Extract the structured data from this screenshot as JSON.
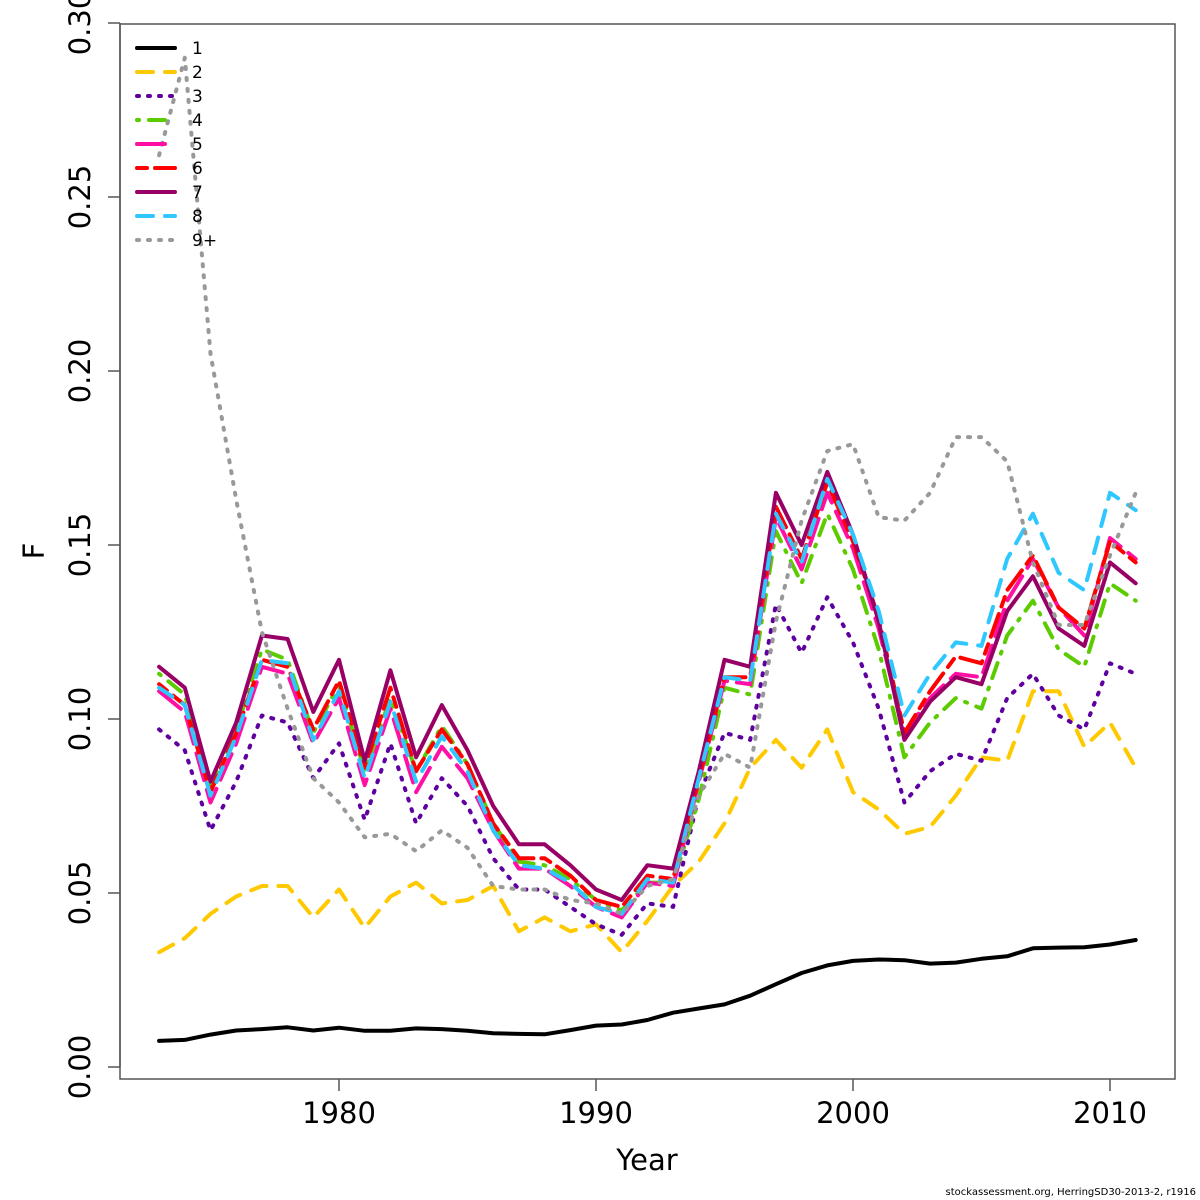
{
  "chart_data": {
    "type": "line",
    "title": "",
    "xlabel": "Year",
    "ylabel": "F",
    "xlim": [
      1972.4,
      2012.5
    ],
    "ylim": [
      0.0,
      0.3
    ],
    "xticks": [
      1980,
      1990,
      2000,
      2010
    ],
    "xtick_labels": [
      "1980",
      "1990",
      "2000",
      "2010"
    ],
    "yticks": [
      0.0,
      0.05,
      0.1,
      0.15,
      0.2,
      0.25,
      0.3
    ],
    "ytick_labels": [
      "0.00",
      "0.05",
      "0.10",
      "0.15",
      "0.20",
      "0.25",
      "0.30"
    ],
    "grid": false,
    "legend_position": "top-left",
    "x": [
      1973,
      1974,
      1975,
      1976,
      1977,
      1978,
      1979,
      1980,
      1981,
      1982,
      1983,
      1984,
      1985,
      1986,
      1987,
      1988,
      1989,
      1990,
      1991,
      1992,
      1993,
      1994,
      1995,
      1996,
      1997,
      1998,
      1999,
      2000,
      2001,
      2002,
      2003,
      2004,
      2005,
      2006,
      2007,
      2008,
      2009,
      2010,
      2011
    ],
    "series": [
      {
        "name": "1",
        "color": "#000000",
        "dash": "solid",
        "values": [
          0.0075,
          0.0078,
          0.0093,
          0.0105,
          0.0109,
          0.0114,
          0.0105,
          0.0113,
          0.0104,
          0.0104,
          0.0111,
          0.0109,
          0.0104,
          0.0097,
          0.0095,
          0.0094,
          0.0106,
          0.0119,
          0.0122,
          0.0135,
          0.0156,
          0.0168,
          0.018,
          0.0205,
          0.0238,
          0.027,
          0.0292,
          0.0305,
          0.0309,
          0.0307,
          0.0297,
          0.03,
          0.0311,
          0.0318,
          0.0341,
          0.0343,
          0.0344,
          0.0352,
          0.0365
        ]
      },
      {
        "name": "2",
        "color": "#FFC900",
        "dash": "dashed",
        "values": [
          0.033,
          0.037,
          0.044,
          0.049,
          0.052,
          0.052,
          0.043,
          0.051,
          0.04,
          0.049,
          0.053,
          0.047,
          0.048,
          0.052,
          0.039,
          0.043,
          0.039,
          0.041,
          0.033,
          0.042,
          0.052,
          0.059,
          0.07,
          0.086,
          0.094,
          0.086,
          0.097,
          0.079,
          0.074,
          0.067,
          0.069,
          0.078,
          0.089,
          0.088,
          0.108,
          0.108,
          0.092,
          0.099,
          0.086
        ]
      },
      {
        "name": "3",
        "color": "#5E00A0",
        "dash": "dotted",
        "values": [
          0.097,
          0.091,
          0.068,
          0.082,
          0.101,
          0.099,
          0.083,
          0.093,
          0.071,
          0.093,
          0.07,
          0.083,
          0.075,
          0.06,
          0.051,
          0.051,
          0.046,
          0.041,
          0.038,
          0.047,
          0.046,
          0.078,
          0.096,
          0.094,
          0.133,
          0.119,
          0.135,
          0.122,
          0.103,
          0.076,
          0.085,
          0.09,
          0.088,
          0.106,
          0.113,
          0.101,
          0.097,
          0.116,
          0.113
        ]
      },
      {
        "name": "4",
        "color": "#5CCC00",
        "dash": "dotdash",
        "values": [
          0.113,
          0.107,
          0.081,
          0.097,
          0.12,
          0.117,
          0.096,
          0.11,
          0.085,
          0.106,
          0.085,
          0.098,
          0.087,
          0.07,
          0.059,
          0.058,
          0.054,
          0.048,
          0.045,
          0.053,
          0.053,
          0.077,
          0.109,
          0.107,
          0.154,
          0.139,
          0.159,
          0.143,
          0.12,
          0.089,
          0.099,
          0.106,
          0.103,
          0.124,
          0.134,
          0.12,
          0.115,
          0.139,
          0.134
        ]
      },
      {
        "name": "5",
        "color": "#FF0FA3",
        "dash": "longdash",
        "values": [
          0.108,
          0.102,
          0.076,
          0.093,
          0.115,
          0.113,
          0.093,
          0.106,
          0.081,
          0.103,
          0.079,
          0.092,
          0.083,
          0.068,
          0.057,
          0.057,
          0.052,
          0.046,
          0.043,
          0.053,
          0.052,
          0.082,
          0.111,
          0.11,
          0.158,
          0.143,
          0.165,
          0.149,
          0.126,
          0.096,
          0.106,
          0.113,
          0.112,
          0.134,
          0.146,
          0.132,
          0.124,
          0.152,
          0.146
        ]
      },
      {
        "name": "6",
        "color": "#FF0000",
        "dash": "twodash",
        "values": [
          0.11,
          0.104,
          0.079,
          0.096,
          0.117,
          0.115,
          0.097,
          0.111,
          0.086,
          0.109,
          0.085,
          0.097,
          0.087,
          0.07,
          0.06,
          0.06,
          0.055,
          0.048,
          0.046,
          0.055,
          0.054,
          0.083,
          0.112,
          0.112,
          0.161,
          0.146,
          0.168,
          0.151,
          0.129,
          0.096,
          0.108,
          0.118,
          0.116,
          0.137,
          0.147,
          0.132,
          0.126,
          0.151,
          0.145
        ]
      },
      {
        "name": "7",
        "color": "#990066",
        "dash": "solid",
        "values": [
          0.115,
          0.109,
          0.082,
          0.099,
          0.124,
          0.123,
          0.102,
          0.117,
          0.088,
          0.114,
          0.089,
          0.104,
          0.091,
          0.075,
          0.064,
          0.064,
          0.058,
          0.051,
          0.048,
          0.058,
          0.057,
          0.085,
          0.117,
          0.115,
          0.165,
          0.15,
          0.171,
          0.153,
          0.128,
          0.094,
          0.105,
          0.112,
          0.11,
          0.131,
          0.141,
          0.126,
          0.121,
          0.145,
          0.139
        ]
      },
      {
        "name": "8",
        "color": "#2EC7FF",
        "dash": "dashed",
        "values": [
          0.109,
          0.104,
          0.078,
          0.095,
          0.117,
          0.116,
          0.094,
          0.108,
          0.083,
          0.105,
          0.082,
          0.095,
          0.085,
          0.068,
          0.058,
          0.057,
          0.053,
          0.046,
          0.044,
          0.054,
          0.053,
          0.083,
          0.112,
          0.111,
          0.159,
          0.145,
          0.169,
          0.153,
          0.131,
          0.101,
          0.113,
          0.122,
          0.121,
          0.146,
          0.159,
          0.142,
          0.137,
          0.165,
          0.16
        ]
      },
      {
        "name": "9+",
        "color": "#999999",
        "dash": "dotted",
        "values": [
          0.262,
          0.29,
          0.205,
          0.163,
          0.125,
          0.103,
          0.083,
          0.076,
          0.066,
          0.067,
          0.062,
          0.068,
          0.063,
          0.052,
          0.051,
          0.051,
          0.048,
          0.047,
          0.044,
          0.052,
          0.054,
          0.078,
          0.09,
          0.086,
          0.128,
          0.157,
          0.177,
          0.179,
          0.158,
          0.157,
          0.165,
          0.181,
          0.181,
          0.174,
          0.145,
          0.127,
          0.127,
          0.147,
          0.165
        ]
      }
    ]
  },
  "footer": "stockassessment.org, HerringSD30-2013-2, r1916"
}
